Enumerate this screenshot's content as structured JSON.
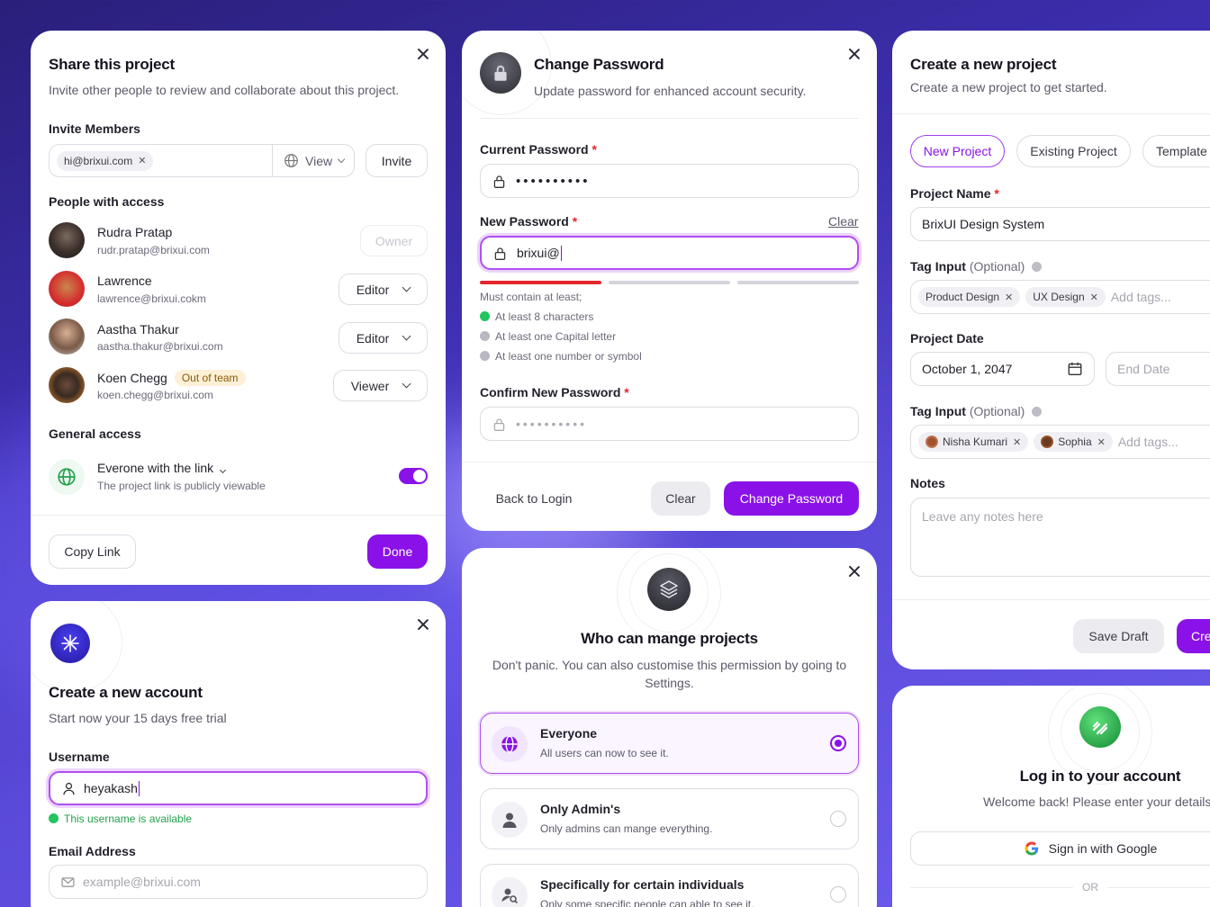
{
  "share": {
    "title": "Share this project",
    "subtitle": "Invite other people to review and collaborate about this project.",
    "invite_label": "Invite Members",
    "invite_chip": "hi@brixui.com",
    "perm_select": "View",
    "invite_button": "Invite",
    "people_label": "People with access",
    "people": [
      {
        "name": "Rudra Pratap",
        "email": "rudr.pratap@brixui.com",
        "role": "Owner"
      },
      {
        "name": "Lawrence",
        "email": "lawrence@brixui.cokm",
        "role": "Editor"
      },
      {
        "name": "Aastha Thakur",
        "email": "aastha.thakur@brixui.com",
        "role": "Editor"
      },
      {
        "name": "Koen Chegg",
        "email": "koen.chegg@brixui.com",
        "role": "Viewer",
        "badge": "Out of team"
      }
    ],
    "general_label": "General access",
    "link_title": "Everone with the link",
    "link_desc": "The project link is publicly viewable",
    "copy_button": "Copy Link",
    "done_button": "Done"
  },
  "password": {
    "title": "Change Password",
    "subtitle": "Update password for enhanced account security.",
    "current_label": "Current Password",
    "current_value": "••••••••••",
    "new_label": "New Password",
    "clear_link": "Clear",
    "new_value": "brixui@",
    "must": "Must contain at least;",
    "rules": [
      "At least 8 characters",
      "At least one Capital letter",
      "At least one number or symbol"
    ],
    "confirm_label": "Confirm New Password",
    "confirm_placeholder": "••••••••••",
    "back_button": "Back to Login",
    "clear_button": "Clear",
    "change_button": "Change Password"
  },
  "newproject": {
    "title": "Create a new project",
    "subtitle": "Create a new project to get started.",
    "tabs": [
      "New Project",
      "Existing Project",
      "Template"
    ],
    "name_label": "Project Name",
    "name_value": "BrixUI Design System",
    "tag_label": "Tag Input",
    "optional": "(Optional)",
    "tags": [
      "Product Design",
      "UX Design"
    ],
    "tags_placeholder": "Add tags...",
    "date_label": "Project Date",
    "start_date": "October 1, 2047",
    "end_placeholder": "End Date",
    "tag2_label": "Tag Input",
    "people_tags": [
      "Nisha Kumari",
      "Sophia"
    ],
    "tags2_placeholder": "Add tags...",
    "notes_label": "Notes",
    "notes_placeholder": "Leave any notes here",
    "save_button": "Save Draft",
    "create_button": "Cre"
  },
  "account": {
    "title": "Create a new account",
    "subtitle": "Start now your 15 days free trial",
    "username_label": "Username",
    "username_value": "heyakash",
    "available": "This username is available",
    "email_label": "Email Address",
    "email_placeholder": "example@brixui.com"
  },
  "manage": {
    "title": "Who can mange projects",
    "subtitle": "Don't panic. You can also customise this permission by going to Settings.",
    "options": [
      {
        "title": "Everyone",
        "desc": "All users can now to see it."
      },
      {
        "title": "Only Admin's",
        "desc": "Only admins can mange everything."
      },
      {
        "title": "Specifically for certain individuals",
        "desc": "Only some specific people can able to see it."
      }
    ]
  },
  "login": {
    "title": "Log in to your account",
    "subtitle": "Welcome back! Please enter your details.",
    "google_button": "Sign in with Google",
    "or": "OR"
  },
  "colors": {
    "accent": "#8a12e8",
    "success": "#22c55e",
    "danger": "#e4262d"
  }
}
